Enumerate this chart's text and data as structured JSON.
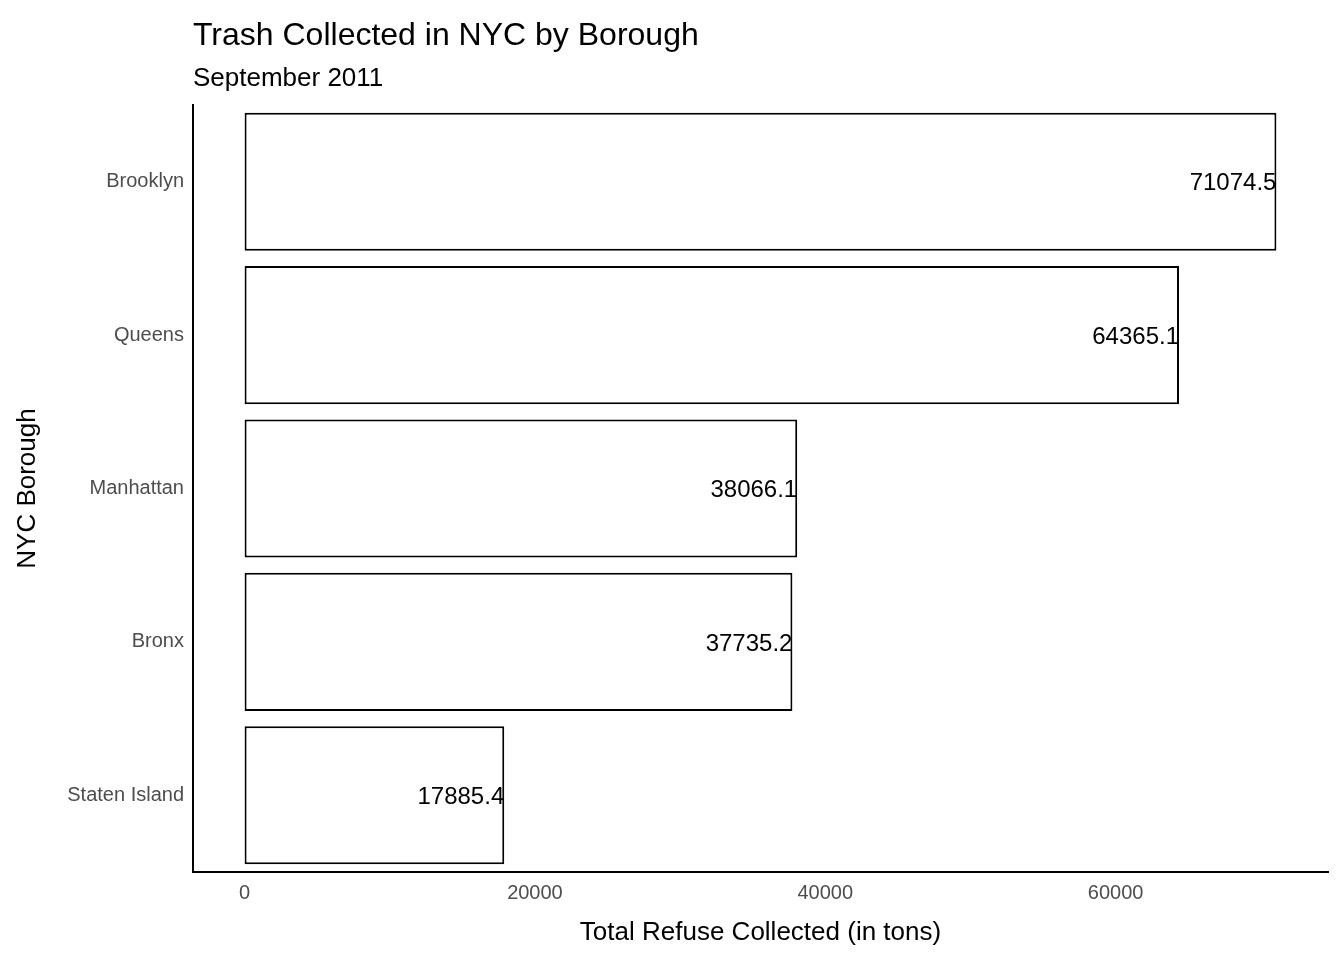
{
  "chart_data": {
    "type": "bar",
    "orientation": "horizontal",
    "title": "Trash Collected in NYC by Borough",
    "subtitle": "September 2011",
    "xlabel": "Total Refuse Collected (in tons)",
    "ylabel": "NYC Borough",
    "categories": [
      "Brooklyn",
      "Queens",
      "Manhattan",
      "Bronx",
      "Staten Island"
    ],
    "values": [
      71074.5,
      64365.1,
      38066.1,
      37735.2,
      17885.4
    ],
    "color": "#ffffff",
    "xlim": [
      -3553.7,
      74628.2
    ],
    "xticks": [
      0,
      20000,
      40000,
      60000
    ],
    "grid": false,
    "legend": false,
    "data_labels": true
  }
}
